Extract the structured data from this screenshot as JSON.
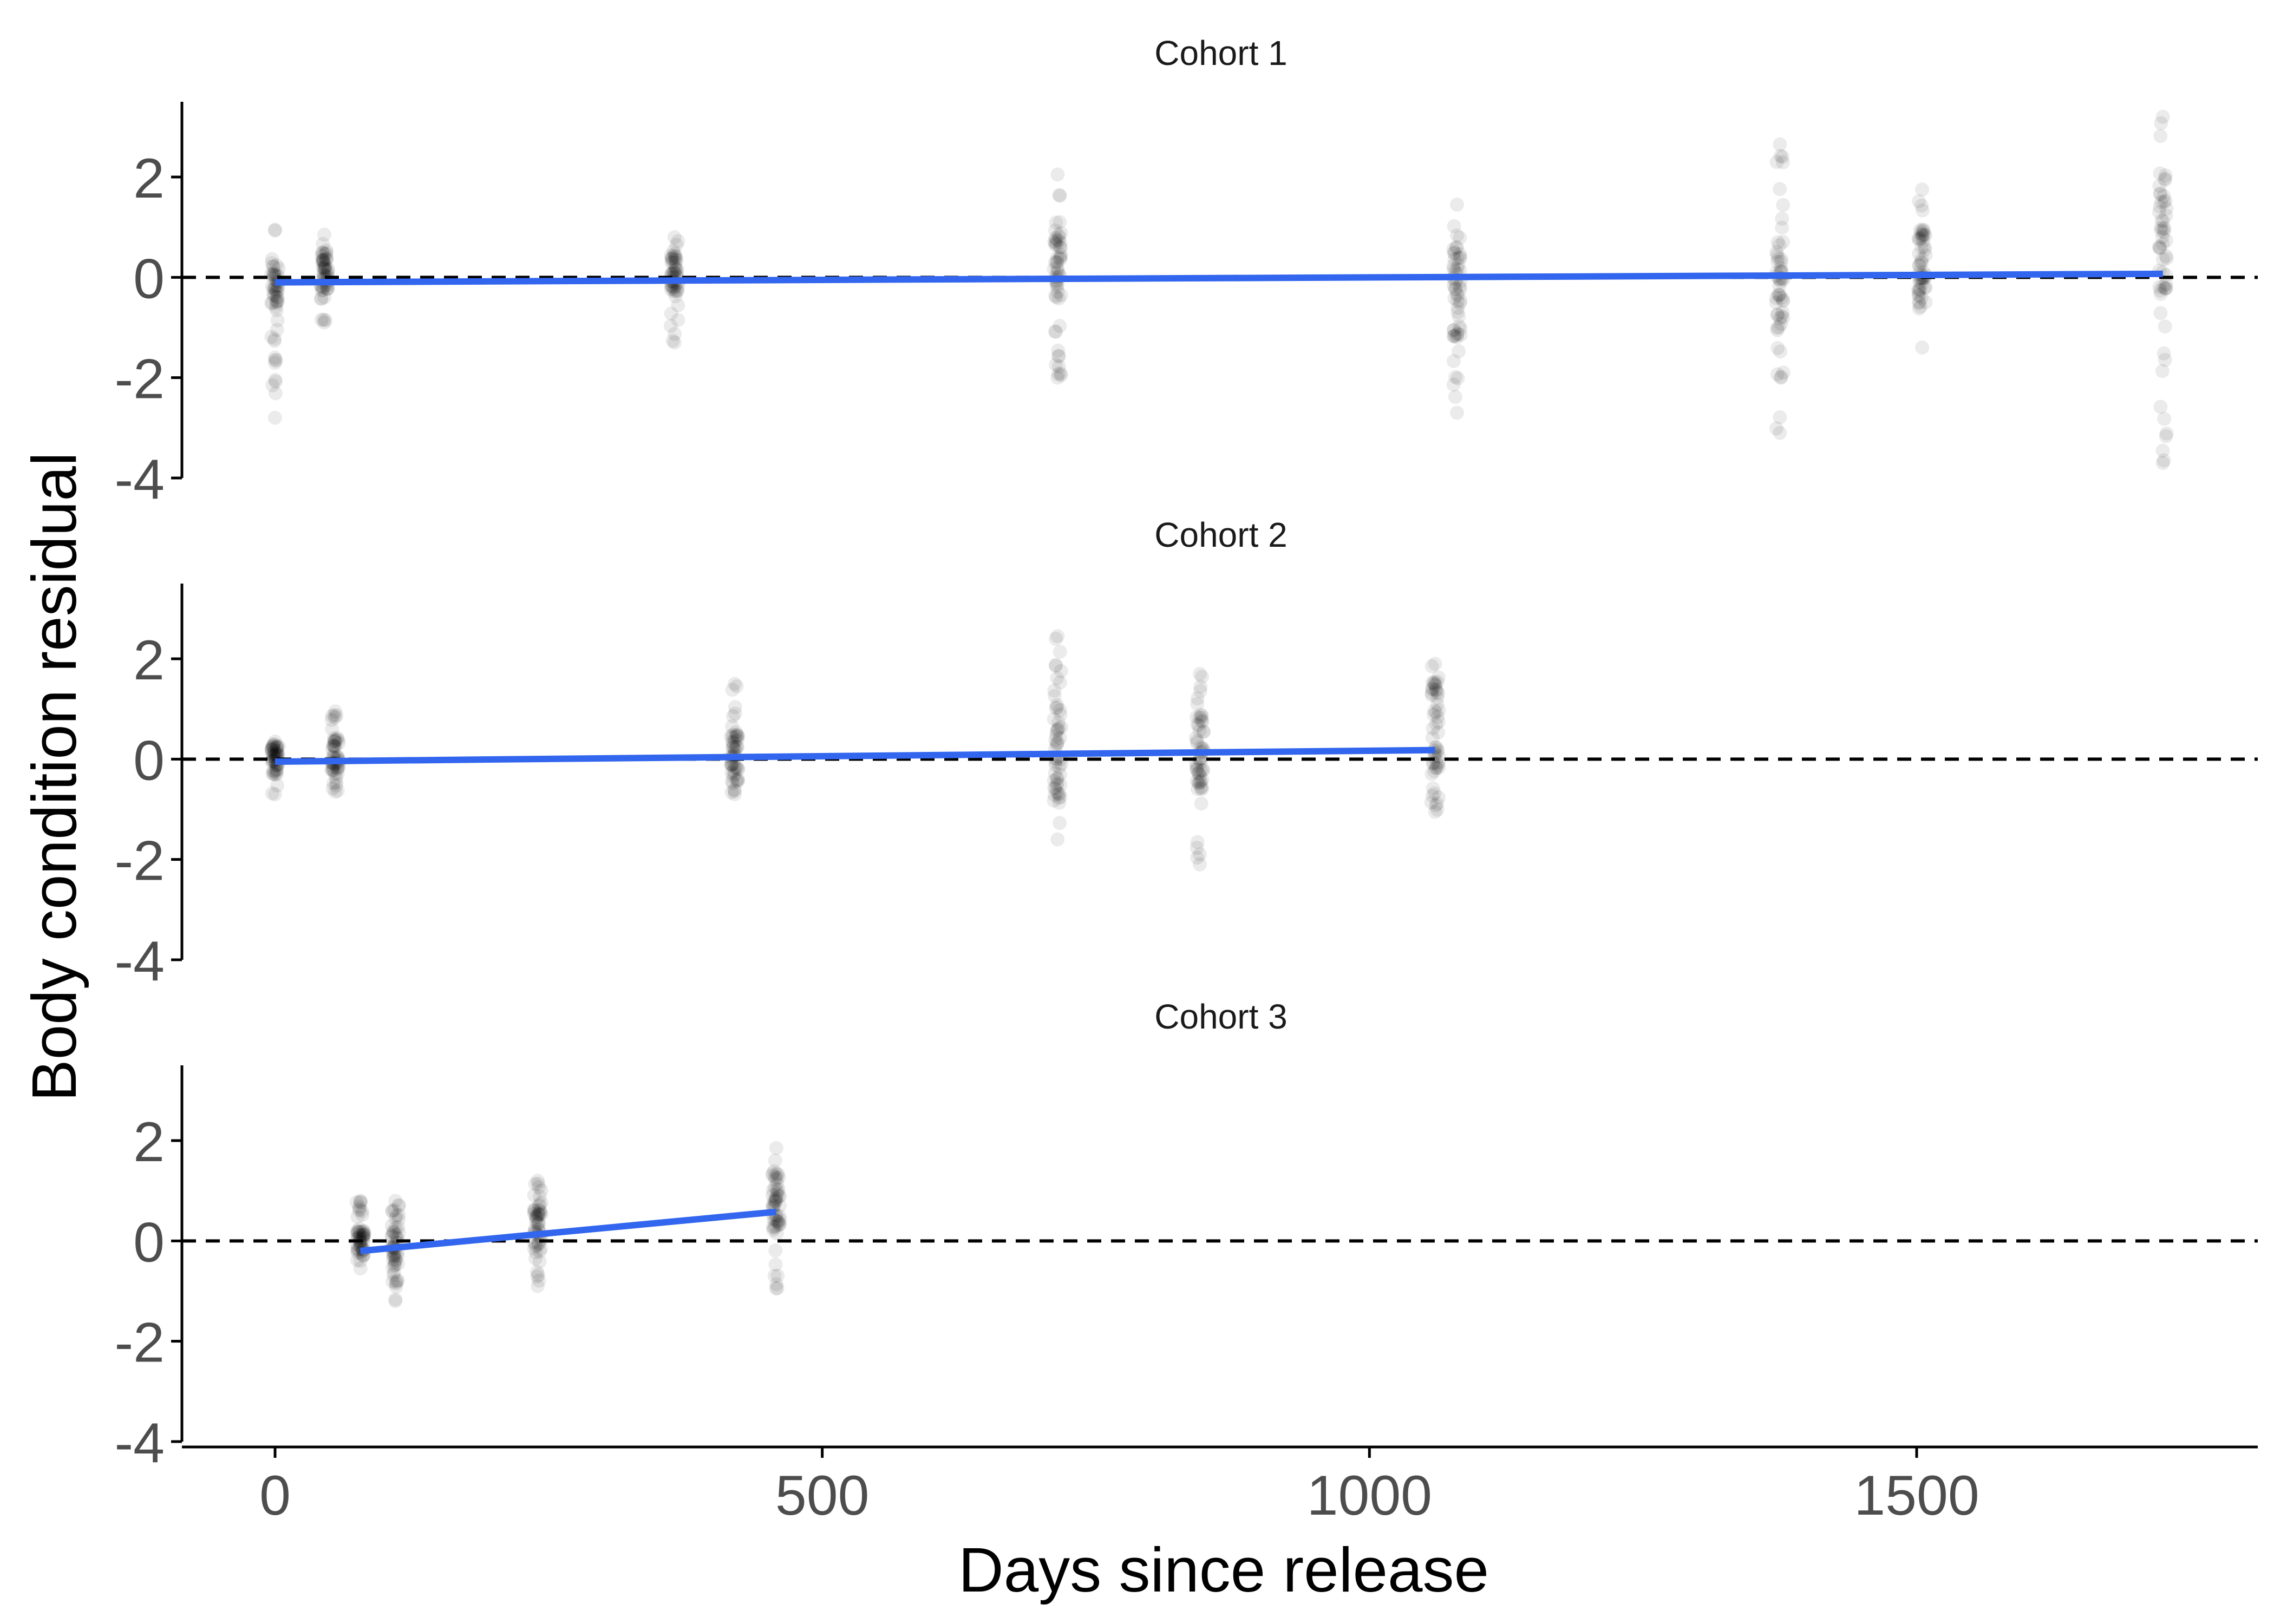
{
  "chart_data": {
    "type": "scatter",
    "layout": "faceted",
    "xlabel": "Days since release",
    "ylabel": "Body condition residual",
    "xlim": [
      -80,
      1820
    ],
    "ylim": [
      -4,
      3.5
    ],
    "x_ticks": [
      0,
      500,
      1000,
      1500
    ],
    "x_tick_labels": [
      "0",
      "500",
      "1000",
      "1500"
    ],
    "y_ticks": [
      -4,
      -2,
      0,
      2
    ],
    "y_tick_labels": [
      "-4",
      "-2",
      "0",
      "2"
    ],
    "reference_line": {
      "y": 0,
      "style": "dashed",
      "color": "#000000"
    },
    "point_color": "#000000",
    "point_alpha": 0.08,
    "fit_color": "#3366ee",
    "grid": false,
    "legend": "none",
    "panels": [
      {
        "label": "Cohort 1",
        "fit": {
          "x": [
            0,
            1725
          ],
          "y": [
            -0.1,
            0.07
          ]
        },
        "sampling_days": [
          {
            "x": 0,
            "y_min": -2.8,
            "y_max": 0.95,
            "dense": [
              -0.6,
              0.35
            ]
          },
          {
            "x": 45,
            "y_min": -0.9,
            "y_max": 0.85,
            "dense": [
              -0.3,
              0.5
            ]
          },
          {
            "x": 365,
            "y_min": -1.3,
            "y_max": 0.8,
            "dense": [
              -0.3,
              0.5
            ]
          },
          {
            "x": 715,
            "y_min": -2.0,
            "y_max": 2.05,
            "dense": [
              -0.6,
              0.9
            ]
          },
          {
            "x": 1080,
            "y_min": -2.7,
            "y_max": 1.45,
            "dense": [
              -1.2,
              0.8
            ]
          },
          {
            "x": 1375,
            "y_min": -3.1,
            "y_max": 2.65,
            "dense": [
              -1.5,
              1.0
            ]
          },
          {
            "x": 1505,
            "y_min": -1.4,
            "y_max": 1.75,
            "dense": [
              -0.6,
              1.0
            ]
          },
          {
            "x": 1725,
            "y_min": -3.7,
            "y_max": 3.2,
            "dense": [
              -0.3,
              2.2
            ]
          }
        ]
      },
      {
        "label": "Cohort 2",
        "fit": {
          "x": [
            0,
            1060
          ],
          "y": [
            -0.05,
            0.18
          ]
        },
        "sampling_days": [
          {
            "x": 0,
            "y_min": -0.7,
            "y_max": 0.35,
            "dense": [
              -0.3,
              0.3
            ]
          },
          {
            "x": 55,
            "y_min": -0.65,
            "y_max": 0.95,
            "dense": [
              -0.3,
              0.45
            ]
          },
          {
            "x": 420,
            "y_min": -0.7,
            "y_max": 1.5,
            "dense": [
              -0.45,
              0.5
            ]
          },
          {
            "x": 715,
            "y_min": -1.6,
            "y_max": 2.45,
            "dense": [
              -0.9,
              0.9
            ]
          },
          {
            "x": 845,
            "y_min": -2.1,
            "y_max": 1.7,
            "dense": [
              -0.6,
              0.9
            ]
          },
          {
            "x": 1060,
            "y_min": -1.05,
            "y_max": 1.9,
            "dense": [
              -0.3,
              1.6
            ]
          }
        ]
      },
      {
        "label": "Cohort 3",
        "fit": {
          "x": [
            78,
            458
          ],
          "y": [
            -0.2,
            0.58
          ]
        },
        "sampling_days": [
          {
            "x": 78,
            "y_min": -0.55,
            "y_max": 0.8,
            "dense": [
              -0.3,
              0.2
            ]
          },
          {
            "x": 110,
            "y_min": -1.2,
            "y_max": 0.8,
            "dense": [
              -0.9,
              0.3
            ]
          },
          {
            "x": 240,
            "y_min": -0.9,
            "y_max": 1.2,
            "dense": [
              -0.25,
              0.65
            ]
          },
          {
            "x": 458,
            "y_min": -0.95,
            "y_max": 1.85,
            "dense": [
              0.2,
              1.4
            ]
          }
        ]
      }
    ]
  }
}
